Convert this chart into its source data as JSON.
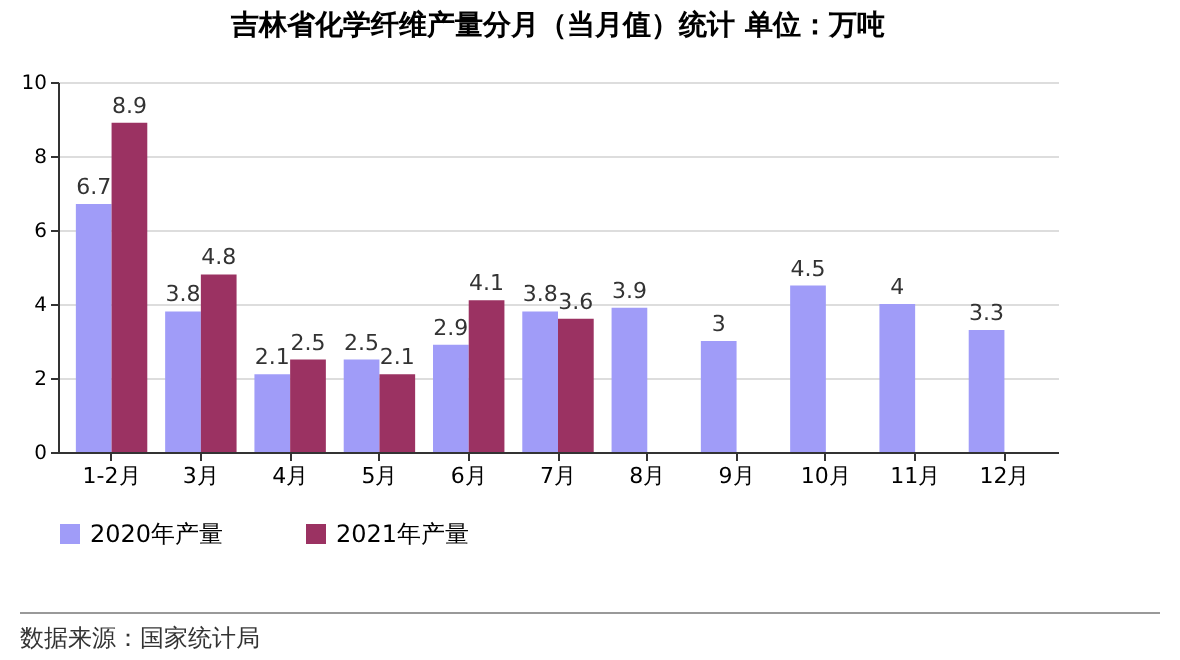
{
  "chart_data": {
    "type": "bar",
    "title": "吉林省化学纤维产量分月（当月值）统计 单位：万吨",
    "categories": [
      "1-2月",
      "3月",
      "4月",
      "5月",
      "6月",
      "7月",
      "8月",
      "9月",
      "10月",
      "11月",
      "12月"
    ],
    "series": [
      {
        "name": "2020年产量",
        "color": "#a09cf8",
        "values": [
          6.7,
          3.8,
          2.1,
          2.5,
          2.9,
          3.8,
          3.9,
          3,
          4.5,
          4,
          3.3
        ]
      },
      {
        "name": "2021年产量",
        "color": "#9b3262",
        "values": [
          8.9,
          4.8,
          2.5,
          2.1,
          4.1,
          3.6,
          null,
          null,
          null,
          null,
          null
        ]
      }
    ],
    "ylim": [
      0,
      10
    ],
    "yticks": [
      0,
      2,
      4,
      6,
      8,
      10
    ],
    "grid": "y",
    "legend": "bottom",
    "data_labels": true,
    "annotations": [
      "数据来源：国家统计局"
    ]
  }
}
